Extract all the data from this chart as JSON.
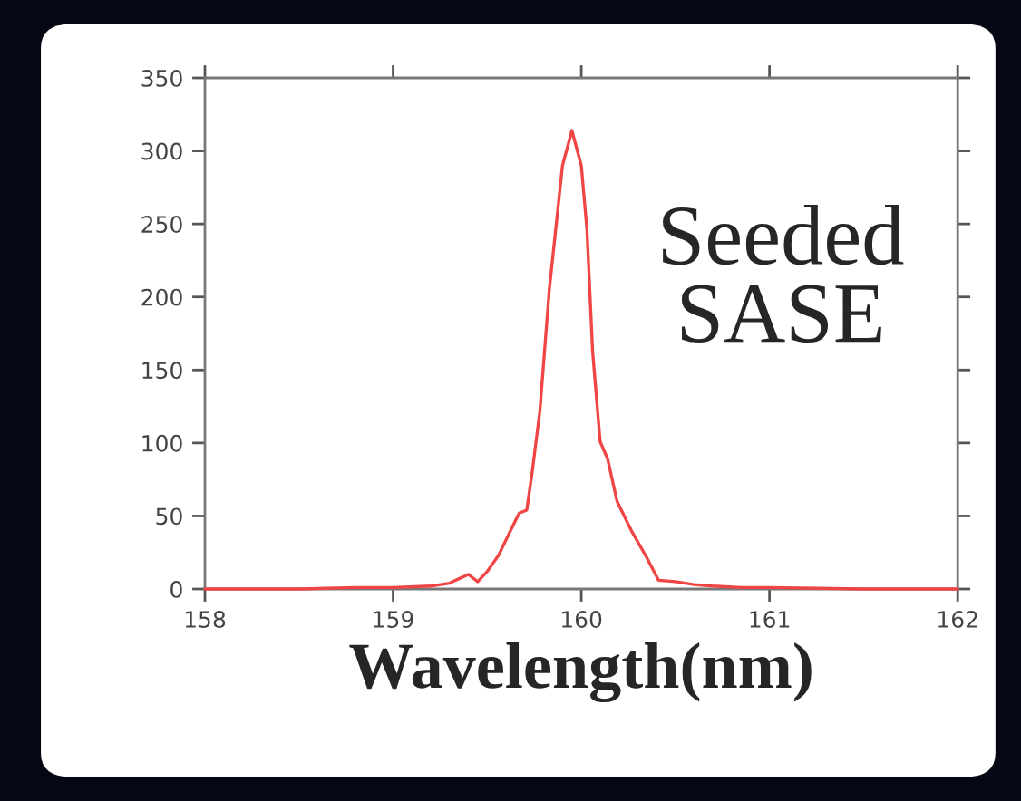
{
  "chart_data": {
    "type": "line",
    "xlabel": "Wavelength(nm)",
    "annotations": [
      "Seeded\nSASE"
    ],
    "x": [
      158,
      158.5,
      158.8,
      159.0,
      159.2,
      159.3,
      159.4,
      159.45,
      159.5,
      159.56,
      159.62,
      159.67,
      159.71,
      159.74,
      159.78,
      159.83,
      159.9,
      159.95,
      160.0,
      160.03,
      160.06,
      160.1,
      160.14,
      160.19,
      160.27,
      160.35,
      160.41,
      160.5,
      160.6,
      160.7,
      160.85,
      161.0,
      161.5,
      162
    ],
    "series": [
      {
        "color": "#f04545",
        "values": [
          0,
          0,
          1,
          1,
          2,
          4,
          10,
          5,
          12,
          23,
          39,
          52,
          54,
          81,
          122,
          205,
          290,
          314,
          290,
          246,
          163,
          101,
          89,
          60,
          39,
          21,
          6,
          5,
          3,
          2,
          1,
          1,
          0,
          0
        ]
      }
    ],
    "xlim": [
      158,
      162
    ],
    "ylim": [
      0,
      350
    ],
    "xticks": [
      158,
      159,
      160,
      161,
      162
    ],
    "yticks": [
      0,
      50,
      100,
      150,
      200,
      250,
      300,
      350
    ]
  }
}
